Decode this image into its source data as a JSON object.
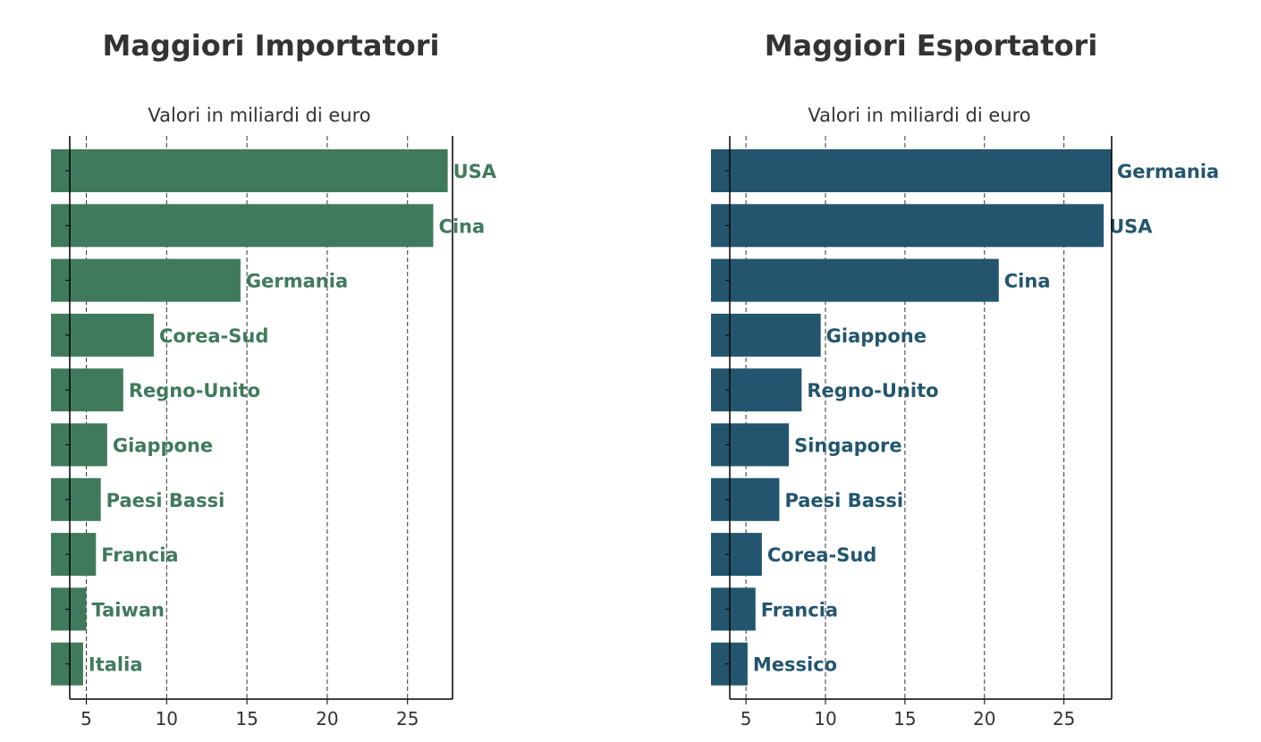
{
  "panels": [
    {
      "title": "Maggiori Importatori",
      "subtitle": "Valori in miliardi di euro",
      "color": "#407a5c"
    },
    {
      "title": "Maggiori Esportatori",
      "subtitle": "Valori in miliardi di euro",
      "color": "#23566e"
    }
  ],
  "chart_data": [
    {
      "type": "bar",
      "orientation": "horizontal",
      "title": "Maggiori Importatori",
      "subtitle": "Valori in miliardi di euro",
      "categories": [
        "USA",
        "Cina",
        "Germania",
        "Corea-Sud",
        "Regno-Unito",
        "Giappone",
        "Paesi Bassi",
        "Francia",
        "Taiwan",
        "Italia"
      ],
      "values": [
        27.5,
        26.6,
        14.6,
        9.2,
        7.3,
        6.3,
        5.9,
        5.6,
        5.0,
        4.8
      ],
      "xticks": [
        5,
        10,
        15,
        20,
        25
      ],
      "xlim": [
        2.8,
        27.8
      ],
      "grid": "vertical dashed",
      "color": "#407a5c"
    },
    {
      "type": "bar",
      "orientation": "horizontal",
      "title": "Maggiori Esportatori",
      "subtitle": "Valori in miliardi di euro",
      "categories": [
        "Germania",
        "USA",
        "Cina",
        "Giappone",
        "Regno-Unito",
        "Singapore",
        "Paesi Bassi",
        "Corea-Sud",
        "Francia",
        "Messico"
      ],
      "values": [
        28.0,
        27.5,
        20.9,
        9.7,
        8.5,
        7.7,
        7.1,
        6.0,
        5.6,
        5.1
      ],
      "xticks": [
        5,
        10,
        15,
        20,
        25
      ],
      "xlim": [
        2.8,
        28.0
      ],
      "grid": "vertical dashed",
      "color": "#23566e"
    }
  ]
}
